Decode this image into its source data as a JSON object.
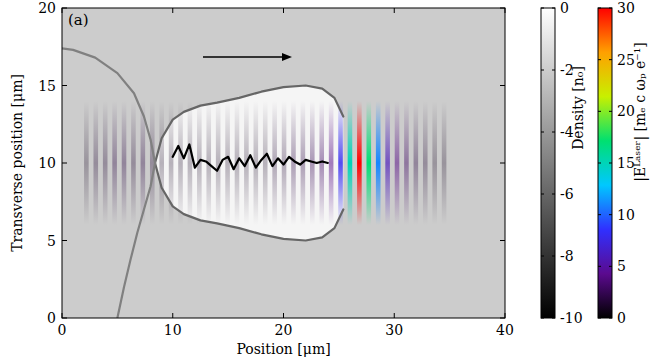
{
  "chart_data": {
    "type": "heatmap",
    "panel_label": "(a)",
    "x_label": "Position [μm]",
    "y_label": "Transverse position [μm]",
    "xlim": [
      0,
      40
    ],
    "ylim": [
      0,
      20
    ],
    "xticks": [
      0,
      10,
      20,
      30,
      40
    ],
    "yticks": [
      0,
      5,
      10,
      15,
      20
    ],
    "density": {
      "label": "Density [n₀]",
      "range": [
        -10,
        0
      ],
      "ticks": [
        0,
        -2,
        -4,
        -6,
        -8,
        -10
      ],
      "colors": [
        "#000000",
        "#ffffff"
      ],
      "background": -2,
      "bubble_interior": -0.4,
      "series": [
        {
          "x": [
            8.4,
            9,
            10,
            11,
            12.5,
            14,
            16,
            18,
            20,
            22,
            23.5,
            24.6,
            25.4
          ],
          "values": [
            10,
            11.6,
            12.8,
            13.3,
            13.7,
            13.9,
            14.2,
            14.6,
            14.9,
            15,
            14.8,
            14.2,
            13
          ],
          "density": -6
        },
        {
          "x": [
            8.4,
            9,
            10,
            11,
            12.5,
            14,
            16,
            18,
            20,
            22,
            23.5,
            24.6,
            25.4
          ],
          "values": [
            10,
            8.4,
            7.2,
            6.7,
            6.3,
            6.1,
            5.8,
            5.4,
            5.1,
            5,
            5.2,
            5.8,
            7
          ],
          "density": -6
        },
        {
          "x": [
            8.4,
            8,
            7.4,
            6.5,
            5,
            3,
            1,
            0
          ],
          "values": [
            10,
            11.5,
            13,
            14.5,
            15.8,
            16.8,
            17.3,
            17.4
          ],
          "density": -5
        },
        {
          "x": [
            8.4,
            8,
            7.4,
            6.8,
            6.2,
            5.6,
            5
          ],
          "values": [
            10,
            8.5,
            7,
            5.5,
            3.8,
            2,
            0
          ],
          "density": -5
        },
        {
          "x": [
            10,
            10.5,
            11,
            11.5,
            12,
            12.5,
            13,
            13.5,
            14,
            14.5,
            15,
            15.5,
            16,
            16.5,
            17,
            17.5,
            18,
            18.5,
            19,
            19.5,
            20,
            20.5,
            21,
            21.5,
            22,
            22.5,
            23,
            23.5,
            24
          ],
          "values": [
            10.4,
            11.1,
            10.3,
            11.2,
            9.7,
            10.2,
            10.1,
            9.8,
            9.5,
            10.2,
            10.4,
            9.6,
            10.3,
            9.8,
            10.5,
            9.7,
            10.2,
            10.6,
            9.8,
            10.3,
            9.9,
            10.4,
            10.1,
            9.9,
            10.2,
            10.1,
            10,
            10.1,
            10
          ],
          "density": -10
        }
      ]
    },
    "laser": {
      "label": "|Eᴸᵃˢᵉʳ| [mₑ c ωₚ e⁻¹]",
      "range": [
        0,
        30
      ],
      "ticks": [
        0,
        5,
        10,
        15,
        20,
        25,
        30
      ],
      "colors": [
        "#000000",
        "#5b0a8f",
        "#3030ff",
        "#00c8ff",
        "#00e070",
        "#c8f000",
        "#ffa000",
        "#ff0000"
      ],
      "x": [
        2.2,
        3.05,
        3.9,
        4.75,
        5.6,
        6.45,
        7.3,
        8.15,
        9.0,
        9.85,
        10.7,
        11.55,
        12.4,
        13.25,
        14.1,
        14.95,
        15.8,
        16.65,
        17.5,
        18.35,
        19.2,
        20.05,
        20.9,
        21.75,
        22.6,
        23.45,
        24.3,
        25.15,
        26.0,
        26.85,
        27.7,
        28.55,
        29.4,
        30.25,
        31.1,
        31.95,
        32.8,
        33.65,
        34.5
      ],
      "values": [
        1,
        1.5,
        1.5,
        2,
        2,
        1.5,
        2,
        1.5,
        1,
        1,
        1,
        1,
        1,
        1,
        1,
        1,
        1,
        1,
        1,
        1,
        1.5,
        1.5,
        2,
        2,
        2.5,
        3,
        4,
        8,
        15,
        30,
        17,
        11,
        6,
        4,
        3,
        2,
        1.5,
        1,
        1
      ],
      "y_center": 10,
      "half_width": 4
    }
  }
}
